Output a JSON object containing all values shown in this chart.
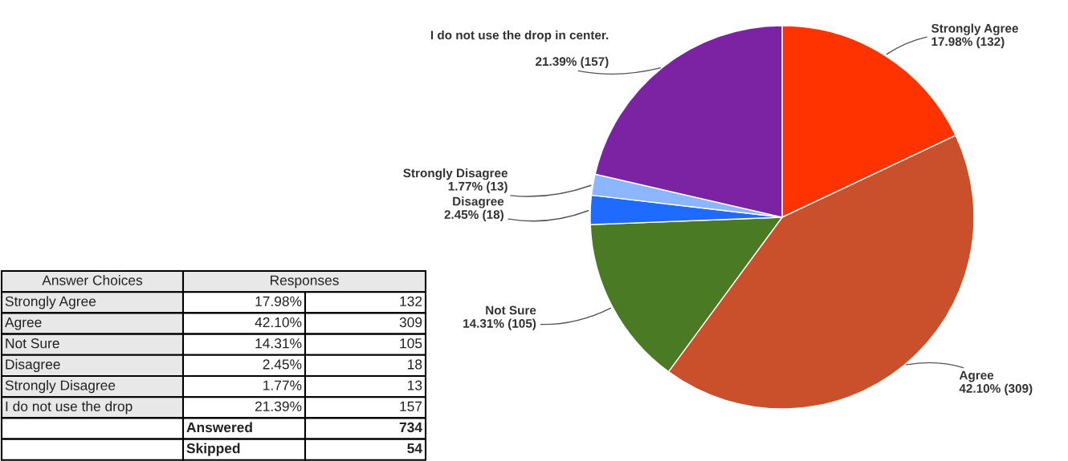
{
  "chart_data": {
    "type": "pie",
    "categories": [
      "Strongly Agree",
      "Agree",
      "Not Sure",
      "Disagree",
      "Strongly Disagree",
      "I do not use the drop in center."
    ],
    "values": [
      17.98,
      42.1,
      14.31,
      2.45,
      1.77,
      21.39
    ],
    "colors": [
      "#fe3300",
      "#c9502a",
      "#4b7a24",
      "#1f6bff",
      "#8cb6ff",
      "#7b23a3"
    ],
    "value_labels": [
      "17.98% (132)",
      "42.10% (309)",
      "14.31% (105)",
      "2.45% (18)",
      "1.77% (13)",
      "21.39% (157)"
    ],
    "data_labels": true,
    "annotations": [
      "Answer Choices",
      "Responses",
      "Strongly Agree",
      "17.98%",
      "132",
      "Agree",
      "42.10%",
      "309",
      "Not Sure",
      "14.31%",
      "105",
      "Disagree",
      "2.45%",
      "18",
      "Strongly Disagree",
      "1.77%",
      "13",
      "I do not use the drop",
      "21.39%",
      "157",
      "Answered",
      "734",
      "Skipped",
      "54"
    ]
  }
}
